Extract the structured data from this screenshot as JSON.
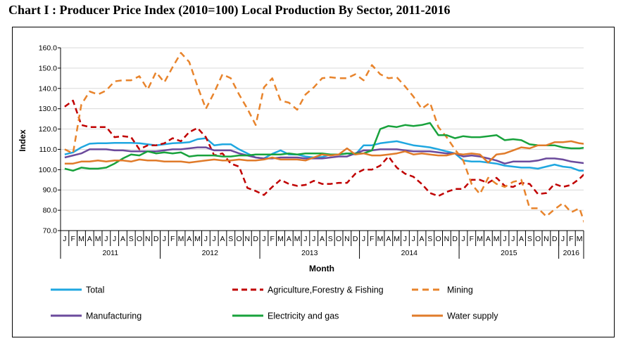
{
  "page": {
    "title": "Chart I : Producer Price Index  (2010=100) Local Production By Sector, 2011-2016"
  },
  "chart_data": {
    "type": "line",
    "title": "",
    "xlabel": "Month",
    "ylabel": "Index",
    "ylim": [
      70,
      160
    ],
    "yticks": [
      "70.0",
      "80.0",
      "90.0",
      "100.0",
      "110.0",
      "120.0",
      "130.0",
      "140.0",
      "150.0",
      "160.0"
    ],
    "month_letters": [
      "J",
      "F",
      "M",
      "A",
      "M",
      "J",
      "J",
      "A",
      "S",
      "O",
      "N",
      "D",
      "J",
      "F",
      "M",
      "A",
      "M",
      "J",
      "J",
      "A",
      "S",
      "O",
      "N",
      "D",
      "J",
      "F",
      "M",
      "A",
      "M",
      "J",
      "J",
      "A",
      "S",
      "O",
      "N",
      "D",
      "J",
      "F",
      "M",
      "A",
      "M",
      "J",
      "J",
      "A",
      "S",
      "O",
      "N",
      "D",
      "J",
      "F",
      "M",
      "A",
      "M",
      "J",
      "J",
      "A",
      "S",
      "O",
      "N",
      "D",
      "J",
      "F",
      "M"
    ],
    "years": [
      {
        "label": "2011",
        "months": 12
      },
      {
        "label": "2012",
        "months": 12
      },
      {
        "label": "2013",
        "months": 12
      },
      {
        "label": "2014",
        "months": 12
      },
      {
        "label": "2015",
        "months": 12
      },
      {
        "label": "2016",
        "months": 3
      }
    ],
    "grid": true,
    "legend_position": "bottom",
    "series": [
      {
        "name": "Total",
        "color": "#1fa7e0",
        "dash": "solid",
        "values": [
          107.5,
          108.5,
          111,
          112.8,
          113,
          113,
          113.2,
          113.2,
          113.2,
          113,
          112.5,
          112,
          112.5,
          113,
          113.2,
          113.5,
          115,
          115.5,
          112,
          112.5,
          112.5,
          110,
          108,
          106,
          105.5,
          107.8,
          109.5,
          107.5,
          107.5,
          106.5,
          106,
          106.2,
          107.5,
          107.5,
          108,
          107.5,
          112,
          112,
          113,
          113.5,
          114,
          113,
          112,
          111.5,
          111,
          110,
          109,
          108,
          104.5,
          104,
          104,
          103.5,
          103,
          102,
          101.5,
          101,
          101,
          100.5,
          101.5,
          102.5,
          101.5,
          101,
          99.5,
          99.5,
          99.5
        ]
      },
      {
        "name": "Agriculture,Forestry & Fishing",
        "color": "#c00000",
        "dash": "8,5",
        "values": [
          131,
          134,
          122,
          121,
          121,
          121,
          116,
          116.5,
          116,
          110,
          112,
          112,
          113,
          115.5,
          114,
          118.5,
          120.5,
          116,
          107,
          108,
          103,
          101.5,
          91,
          89.5,
          87.5,
          91.5,
          95,
          93,
          92,
          92.5,
          94.5,
          93,
          93,
          93.5,
          93.5,
          98,
          100,
          100,
          102,
          106.5,
          101,
          98,
          96.5,
          93,
          88.5,
          87,
          89,
          90.5,
          90.5,
          95,
          95,
          93.5,
          96,
          92,
          91.5,
          93.5,
          93,
          88,
          88.5,
          93,
          91.5,
          92.5,
          95.5,
          99.5,
          103
        ]
      },
      {
        "name": "Mining",
        "color": "#e8842c",
        "dash": "9,6",
        "values": [
          110,
          108,
          132,
          138.5,
          137,
          139,
          143.5,
          144,
          144,
          146,
          139.5,
          148,
          143,
          150.5,
          157.5,
          153,
          141,
          130,
          138,
          147,
          145,
          137,
          130,
          122,
          140.5,
          145,
          134,
          133,
          129.5,
          137,
          140.5,
          145,
          145.5,
          145,
          145,
          147,
          144,
          151.5,
          147,
          145,
          145.5,
          141,
          136,
          130,
          133,
          121,
          116,
          110,
          104.5,
          93,
          88,
          96,
          93,
          91.5,
          94,
          95,
          81,
          81,
          77,
          80.5,
          83.5,
          79,
          81,
          69,
          68
        ]
      },
      {
        "name": "Manufacturing",
        "color": "#6b4a9c",
        "dash": "solid",
        "values": [
          106,
          107,
          108,
          110,
          110,
          110,
          109.5,
          109.5,
          109,
          109,
          109,
          109,
          109.5,
          110,
          110,
          110.5,
          111,
          111,
          109.5,
          109.5,
          109.5,
          108,
          107,
          106,
          105.5,
          105.5,
          106,
          106,
          106,
          105.5,
          105.5,
          105.5,
          106,
          106.5,
          106.5,
          108,
          109.5,
          109.5,
          110,
          110,
          110,
          109.5,
          109,
          109,
          109,
          108.5,
          108,
          108,
          106.5,
          107,
          106.5,
          105.5,
          104.5,
          103,
          104,
          104,
          104,
          104.5,
          105.5,
          105.5,
          105,
          104,
          103.5,
          103,
          102.5
        ]
      },
      {
        "name": "Electricity and gas",
        "color": "#18a23c",
        "dash": "solid",
        "values": [
          100.5,
          99.5,
          101,
          100.5,
          100.5,
          101,
          103,
          105.5,
          107.5,
          107,
          109,
          108,
          108.5,
          108,
          108.5,
          106.5,
          107,
          107,
          107,
          106.5,
          106.5,
          107,
          107,
          107.5,
          107.5,
          107.5,
          107.5,
          108,
          107.5,
          108,
          108,
          108,
          107.5,
          107.5,
          108,
          108,
          108,
          109.5,
          120,
          121.5,
          121,
          122,
          121.5,
          122,
          123,
          117,
          117,
          115.5,
          116.5,
          116,
          116,
          116.5,
          117,
          114.5,
          115,
          114.5,
          112.5,
          112,
          112,
          112,
          111,
          110.5,
          110.5,
          111,
          111
        ]
      },
      {
        "name": "Water supply",
        "color": "#e07b2a",
        "dash": "solid",
        "values": [
          103,
          103,
          104,
          104,
          104.5,
          104,
          104.5,
          104.5,
          104,
          105,
          104.5,
          104.5,
          104,
          104,
          104,
          103.5,
          104,
          104.5,
          105,
          104.5,
          104.5,
          105,
          104.5,
          104.5,
          105,
          106,
          105,
          105,
          105,
          104.5,
          106,
          107.5,
          107,
          107.5,
          110.5,
          107.5,
          108,
          107,
          107,
          107.5,
          108,
          109,
          107.5,
          108,
          107.5,
          107,
          107,
          108,
          107.5,
          108,
          107.5,
          103.5,
          107.5,
          108,
          109.5,
          111,
          110.5,
          112,
          112,
          113.5,
          113.5,
          114,
          113,
          112.5,
          112.5
        ]
      }
    ]
  }
}
